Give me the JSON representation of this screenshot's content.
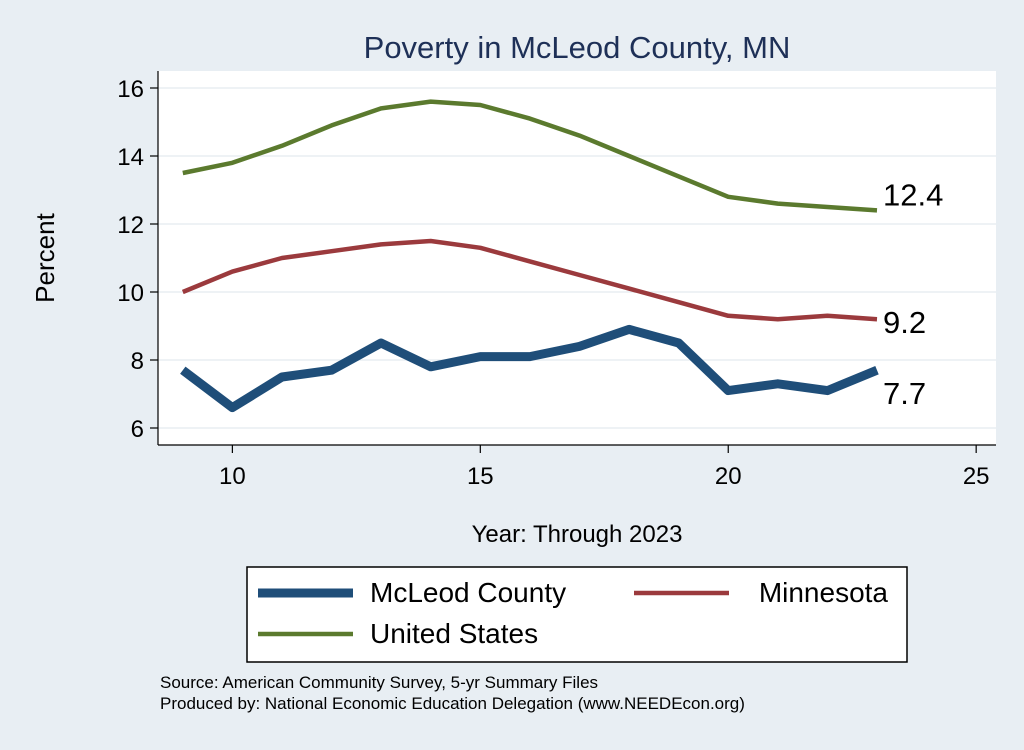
{
  "chart_data": {
    "type": "line",
    "title": "Poverty in McLeod County, MN",
    "xlabel": "Year: Through 2023",
    "ylabel": "Percent",
    "xlim": [
      8.5,
      25.4
    ],
    "ylim": [
      5.5,
      16.5
    ],
    "xticks": [
      10,
      15,
      20,
      25
    ],
    "yticks": [
      6,
      8,
      10,
      12,
      14,
      16
    ],
    "grid": true,
    "legend_position": "bottom",
    "x": [
      9,
      10,
      11,
      12,
      13,
      14,
      15,
      16,
      17,
      18,
      19,
      20,
      21,
      22,
      23
    ],
    "series": [
      {
        "name": "McLeod County",
        "color": "#1f4e79",
        "values": [
          7.7,
          6.6,
          7.5,
          7.7,
          8.5,
          7.8,
          8.1,
          8.1,
          8.4,
          8.9,
          8.5,
          7.1,
          7.3,
          7.1,
          7.7
        ],
        "end_label": "7.7"
      },
      {
        "name": "Minnesota",
        "color": "#9b3a3d",
        "values": [
          10.0,
          10.6,
          11.0,
          11.2,
          11.4,
          11.5,
          11.3,
          10.9,
          10.5,
          10.1,
          9.7,
          9.3,
          9.2,
          9.3,
          9.2
        ],
        "end_label": "9.2"
      },
      {
        "name": "United States",
        "color": "#5b7a2e",
        "values": [
          13.5,
          13.8,
          14.3,
          14.9,
          15.4,
          15.6,
          15.5,
          15.1,
          14.6,
          14.0,
          13.4,
          12.8,
          12.6,
          12.5,
          12.4
        ],
        "end_label": "12.4"
      }
    ],
    "source_note": [
      "Source: American Community Survey, 5-yr Summary Files",
      "Produced by: National Economic Education Delegation (www.NEEDEcon.org)"
    ]
  }
}
